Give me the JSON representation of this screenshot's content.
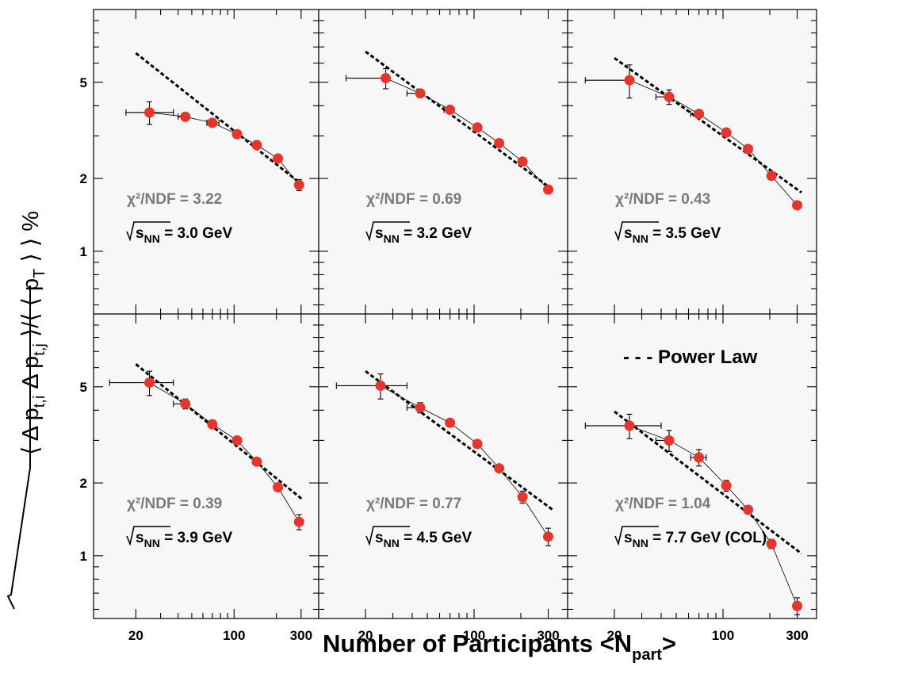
{
  "figure": {
    "xlabel_main": "Number of Participants <N",
    "xlabel_sub": "part",
    "xlabel_end": ">",
    "ylabel_parts": [
      "⟨ Δ p",
      "t,i",
      " Δ p",
      "t,j",
      " ⟩/⟨ ⟨ p",
      "T",
      " ⟩ ⟩ %"
    ],
    "energy_prefix": "s",
    "energy_sub": "NN",
    "legend_label": "- - - Power Law",
    "colors": {
      "frame_fill": "#f7f7f7",
      "marker": "#e8342a",
      "fit_line": "#000000",
      "chi_text": "#7a7a7a"
    }
  },
  "chart_data": [
    {
      "type": "scatter",
      "xscale": "log",
      "yscale": "log",
      "xlim": [
        10,
        400
      ],
      "ylim": [
        0.55,
        10
      ],
      "xticks": [
        20,
        100,
        300
      ],
      "yticks": [
        1,
        2,
        5
      ],
      "chi2_label": "χ²/NDF = 3.22",
      "energy_value": " = 3.0 GeV",
      "series": [
        {
          "x": [
            25,
            45,
            70,
            105,
            145,
            205,
            290
          ],
          "y": [
            3.75,
            3.6,
            3.4,
            3.05,
            2.75,
            2.42,
            1.88
          ],
          "xerr": [
            [
              8,
              5,
              6,
              5,
              0,
              0,
              0
            ],
            [
              12,
              0,
              8,
              0,
              0,
              0,
              0
            ]
          ],
          "yerr": [
            [
              0.4,
              0.1,
              0.1,
              0.1,
              0.05,
              0.05,
              0.1
            ],
            [
              0.4,
              0.1,
              0.1,
              0.1,
              0.05,
              0.05,
              0.1
            ]
          ]
        }
      ],
      "fit": {
        "x": [
          20,
          300
        ],
        "y": [
          6.6,
          1.9
        ]
      }
    },
    {
      "type": "scatter",
      "xscale": "log",
      "yscale": "log",
      "xlim": [
        10,
        400
      ],
      "ylim": [
        0.55,
        10
      ],
      "xticks": [
        20,
        100,
        300
      ],
      "yticks": [
        1,
        2,
        5
      ],
      "chi2_label": "χ²/NDF = 0.69",
      "energy_value": " = 3.2 GeV",
      "series": [
        {
          "x": [
            27,
            45,
            70,
            105,
            145,
            205,
            300
          ],
          "y": [
            5.2,
            4.5,
            3.85,
            3.25,
            2.8,
            2.35,
            1.8
          ],
          "xerr": [
            [
              12,
              8,
              6,
              0,
              0,
              0,
              0
            ],
            [
              0,
              0,
              0,
              0,
              0,
              0,
              0
            ]
          ],
          "yerr": [
            [
              0.5,
              0.1,
              0.1,
              0.1,
              0.05,
              0.05,
              0.05
            ],
            [
              0.5,
              0.1,
              0.1,
              0.1,
              0.05,
              0.05,
              0.05
            ]
          ]
        }
      ],
      "fit": {
        "x": [
          20,
          320
        ],
        "y": [
          6.7,
          1.8
        ]
      }
    },
    {
      "type": "scatter",
      "xscale": "log",
      "yscale": "log",
      "xlim": [
        10,
        400
      ],
      "ylim": [
        0.55,
        10
      ],
      "xticks": [
        20,
        100,
        300
      ],
      "yticks": [
        1,
        2,
        5
      ],
      "chi2_label": "χ²/NDF = 0.43",
      "energy_value": " = 3.5 GeV",
      "series": [
        {
          "x": [
            25,
            45,
            70,
            105,
            145,
            205,
            300
          ],
          "y": [
            5.1,
            4.35,
            3.7,
            3.1,
            2.65,
            2.05,
            1.55
          ],
          "xerr": [
            [
              12,
              8,
              8,
              0,
              0,
              0,
              0
            ],
            [
              0,
              0,
              0,
              0,
              0,
              0,
              0
            ]
          ],
          "yerr": [
            [
              0.8,
              0.3,
              0.1,
              0.1,
              0.05,
              0.05,
              0.05
            ],
            [
              0.8,
              0.3,
              0.1,
              0.1,
              0.05,
              0.05,
              0.05
            ]
          ]
        }
      ],
      "fit": {
        "x": [
          20,
          320
        ],
        "y": [
          6.3,
          1.75
        ]
      }
    },
    {
      "type": "scatter",
      "xscale": "log",
      "yscale": "log",
      "xlim": [
        10,
        400
      ],
      "ylim": [
        0.55,
        10
      ],
      "xticks": [
        20,
        100,
        300
      ],
      "yticks": [
        1,
        2,
        5
      ],
      "chi2_label": "χ²/NDF = 0.39",
      "energy_value": " = 3.9 GeV",
      "series": [
        {
          "x": [
            25,
            45,
            70,
            105,
            145,
            205,
            290
          ],
          "y": [
            5.2,
            4.25,
            3.5,
            3.0,
            2.45,
            1.92,
            1.38
          ],
          "xerr": [
            [
              12,
              8,
              0,
              0,
              0,
              0,
              0
            ],
            [
              12,
              0,
              0,
              0,
              0,
              0,
              0
            ]
          ],
          "yerr": [
            [
              0.6,
              0.2,
              0.1,
              0.05,
              0.05,
              0.05,
              0.1
            ],
            [
              0.6,
              0.2,
              0.1,
              0.05,
              0.05,
              0.05,
              0.1
            ]
          ]
        }
      ],
      "fit": {
        "x": [
          20,
          310
        ],
        "y": [
          6.2,
          1.7
        ]
      }
    },
    {
      "type": "scatter",
      "xscale": "log",
      "yscale": "log",
      "xlim": [
        10,
        400
      ],
      "ylim": [
        0.55,
        10
      ],
      "xticks": [
        20,
        100,
        300
      ],
      "yticks": [
        1,
        2,
        5
      ],
      "chi2_label": "χ²/NDF = 0.77",
      "energy_value": " = 4.5 GeV",
      "series": [
        {
          "x": [
            25,
            45,
            70,
            105,
            145,
            205,
            300
          ],
          "y": [
            5.05,
            4.1,
            3.55,
            2.9,
            2.3,
            1.75,
            1.2
          ],
          "xerr": [
            [
              12,
              8,
              0,
              0,
              0,
              0,
              0
            ],
            [
              12,
              0,
              0,
              0,
              0,
              0,
              0
            ]
          ],
          "yerr": [
            [
              0.6,
              0.2,
              0.1,
              0.05,
              0.05,
              0.1,
              0.1
            ],
            [
              0.6,
              0.2,
              0.1,
              0.05,
              0.05,
              0.1,
              0.1
            ]
          ]
        }
      ],
      "fit": {
        "x": [
          20,
          320
        ],
        "y": [
          5.8,
          1.55
        ]
      }
    },
    {
      "type": "scatter",
      "xscale": "log",
      "yscale": "log",
      "xlim": [
        10,
        400
      ],
      "ylim": [
        0.55,
        10
      ],
      "xticks": [
        20,
        100,
        300
      ],
      "yticks": [
        1,
        2,
        5
      ],
      "chi2_label": "χ²/NDF = 1.04",
      "energy_value": " = 7.7 GeV (COL)",
      "legend": "Power Law",
      "series": [
        {
          "x": [
            25,
            45,
            70,
            105,
            145,
            205,
            300
          ],
          "y": [
            3.45,
            3.0,
            2.55,
            1.95,
            1.55,
            1.12,
            0.62
          ],
          "xerr": [
            [
              12,
              8,
              8,
              0,
              0,
              0,
              0
            ],
            [
              15,
              0,
              8,
              0,
              0,
              0,
              0
            ]
          ],
          "yerr": [
            [
              0.4,
              0.3,
              0.2,
              0.1,
              0.05,
              0.05,
              0.05
            ],
            [
              0.4,
              0.3,
              0.2,
              0.1,
              0.05,
              0.05,
              0.05
            ]
          ]
        }
      ],
      "fit": {
        "x": [
          20,
          320
        ],
        "y": [
          3.95,
          1.02
        ]
      }
    }
  ]
}
